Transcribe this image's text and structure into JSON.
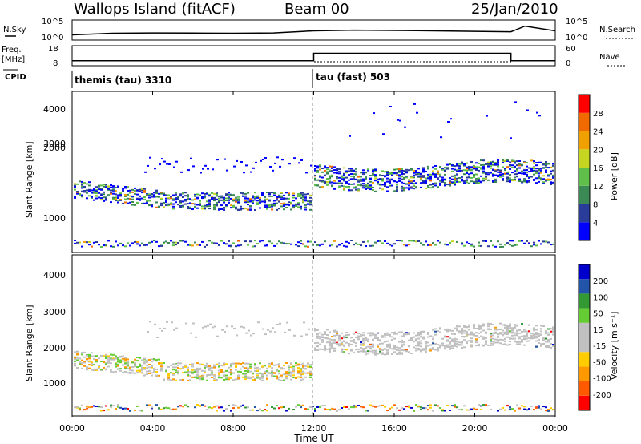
{
  "header": {
    "station": "Wallops Island (fitACF)",
    "beam": "Beam 00",
    "date": "25/Jan/2010"
  },
  "noise_panel": {
    "left_label": "N.Sky",
    "right_label": "N.Search",
    "ticks_left": [
      "10^5",
      "10^0"
    ],
    "ticks_right": [
      "10^5",
      "10^0"
    ]
  },
  "freq_panel": {
    "left_label_1": "Freq.",
    "left_label_2": "[MHz]",
    "right_label": "Nave",
    "left_ticks": [
      "18",
      "8"
    ],
    "right_ticks": [
      "60",
      "0"
    ]
  },
  "cpid_panel": {
    "label": "CPID",
    "modes": [
      "themis (tau) 3310",
      "tau (fast) 503"
    ]
  },
  "colors": {
    "power_scale": [
      "#0000ff",
      "#2a3c9a",
      "#3b8a55",
      "#5fbf4a",
      "#c6d620",
      "#f0a000",
      "#f06a00",
      "#ff0000"
    ],
    "velocity_scale": [
      "#ff0000",
      "#ff5a00",
      "#ff9900",
      "#ffcc00",
      "#c0c0c0",
      "#c0c0c0",
      "#66cc33",
      "#339933",
      "#2255aa",
      "#0000cc"
    ],
    "ground_scatter": "#c0c0c0"
  },
  "chart_data": [
    {
      "type": "line",
      "title": "",
      "xlabel": "",
      "ylabel": "N.Sky",
      "y_scale": "log",
      "ylim": [
        1,
        100000
      ],
      "series": [
        {
          "name": "N.Sky",
          "x": [
            0,
            2,
            4,
            6,
            8,
            10,
            12,
            14,
            16,
            18,
            20,
            21.8,
            22.5,
            24
          ],
          "y": [
            20,
            50,
            60,
            55,
            50,
            60,
            200,
            300,
            250,
            200,
            150,
            120,
            3000,
            200
          ]
        }
      ]
    },
    {
      "type": "line",
      "title": "",
      "xlabel": "",
      "ylabel": "Freq. [MHz]",
      "ylim": [
        8,
        18
      ],
      "y2label": "Nave",
      "y2lim": [
        0,
        60
      ],
      "series": [
        {
          "name": "Freq.",
          "x": [
            0,
            12,
            12,
            21.8,
            21.8,
            24
          ],
          "y": [
            10.5,
            10.5,
            14.2,
            14.2,
            10.5,
            10.5
          ]
        }
      ]
    },
    {
      "type": "heatmap",
      "title": "",
      "xlabel": "",
      "ylabel": "Slant Range [km]",
      "colorbar_label": "Power [dB]",
      "colorbar_ticks": [
        "28",
        "24",
        "20",
        "16",
        "12",
        "8",
        "4"
      ],
      "xlim": [
        0,
        24
      ],
      "ylim": [
        180,
        4600
      ],
      "y_ticks": [
        "1000",
        "2000",
        "3000",
        "4000"
      ],
      "x_ticks": [
        "00:00",
        "04:00",
        "08:00",
        "12:00",
        "16:00",
        "20:00",
        "00:00"
      ]
    },
    {
      "type": "heatmap",
      "title": "",
      "xlabel": "Time UT",
      "ylabel": "Slant Range [km]",
      "colorbar_label": "Velocity [m s⁻¹]",
      "colorbar_ticks": [
        "200",
        "100",
        "50",
        "15",
        "-15",
        "-50",
        "-100",
        "-200"
      ],
      "xlim": [
        0,
        24
      ],
      "ylim": [
        180,
        4600
      ],
      "y_ticks": [
        "1000",
        "2000",
        "3000",
        "4000"
      ],
      "x_ticks": [
        "00:00",
        "04:00",
        "08:00",
        "12:00",
        "16:00",
        "20:00",
        "00:00"
      ]
    }
  ]
}
